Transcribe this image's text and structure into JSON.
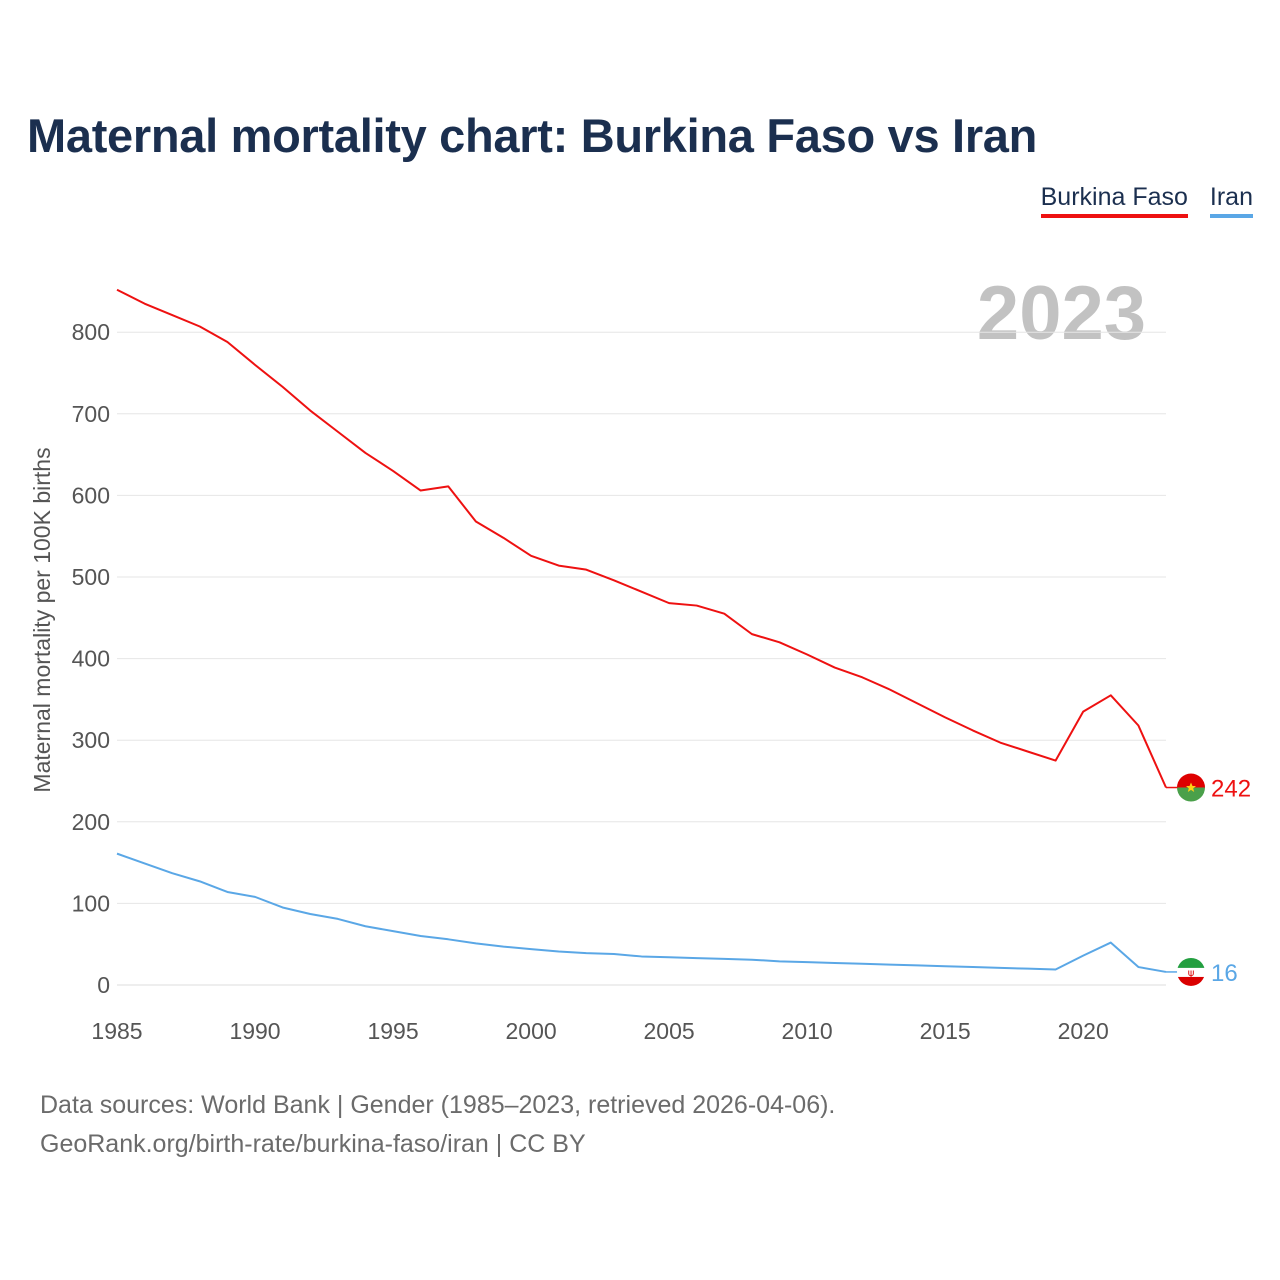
{
  "colors": {
    "burkina": "#ee1111",
    "iran": "#5aa7e6",
    "title": "#1b2f4f",
    "grid": "#e6e6e6",
    "watermark": "#c2c2c2"
  },
  "header": {
    "title": "Maternal mortality chart: Burkina Faso vs Iran"
  },
  "legend": {
    "burkina": "Burkina Faso",
    "iran": "Iran"
  },
  "watermark_year": "2023",
  "footer": {
    "line1": "Data sources: World Bank | Gender (1985–2023, retrieved 2026-04-06).",
    "line2": "GeoRank.org/birth-rate/burkina-faso/iran | CC BY"
  },
  "chart_data": {
    "type": "line",
    "title": "Maternal mortality chart: Burkina Faso vs Iran",
    "xlabel": "",
    "ylabel": "Maternal mortality per 100K births",
    "xlim": [
      1985,
      2023
    ],
    "ylim": [
      0,
      850
    ],
    "xticks": [
      1985,
      1990,
      1995,
      2000,
      2005,
      2010,
      2015,
      2020
    ],
    "yticks": [
      0,
      100,
      200,
      300,
      400,
      500,
      600,
      700,
      800
    ],
    "grid": true,
    "legend_position": "top-right",
    "x": [
      1985,
      1986,
      1987,
      1988,
      1989,
      1990,
      1991,
      1992,
      1993,
      1994,
      1995,
      1996,
      1997,
      1998,
      1999,
      2000,
      2001,
      2002,
      2003,
      2004,
      2005,
      2006,
      2007,
      2008,
      2009,
      2010,
      2011,
      2012,
      2013,
      2014,
      2015,
      2016,
      2017,
      2018,
      2019,
      2020,
      2021,
      2022,
      2023
    ],
    "series": [
      {
        "name": "Burkina Faso",
        "color": "#ee1111",
        "end_label": "242",
        "values": [
          852,
          835,
          821,
          807,
          788,
          760,
          733,
          704,
          678,
          652,
          630,
          606,
          611,
          568,
          548,
          526,
          514,
          509,
          496,
          482,
          468,
          465,
          455,
          430,
          420,
          405,
          389,
          377,
          362,
          345,
          328,
          312,
          297,
          286,
          275,
          335,
          355,
          318,
          242
        ]
      },
      {
        "name": "Iran",
        "color": "#5aa7e6",
        "end_label": "16",
        "values": [
          161,
          149,
          137,
          127,
          114,
          108,
          95,
          87,
          81,
          72,
          66,
          60,
          56,
          51,
          47,
          44,
          41,
          39,
          38,
          35,
          34,
          33,
          32,
          31,
          29,
          28,
          27,
          26,
          25,
          24,
          23,
          22,
          21,
          20,
          19,
          36,
          52,
          22,
          16
        ]
      }
    ]
  }
}
